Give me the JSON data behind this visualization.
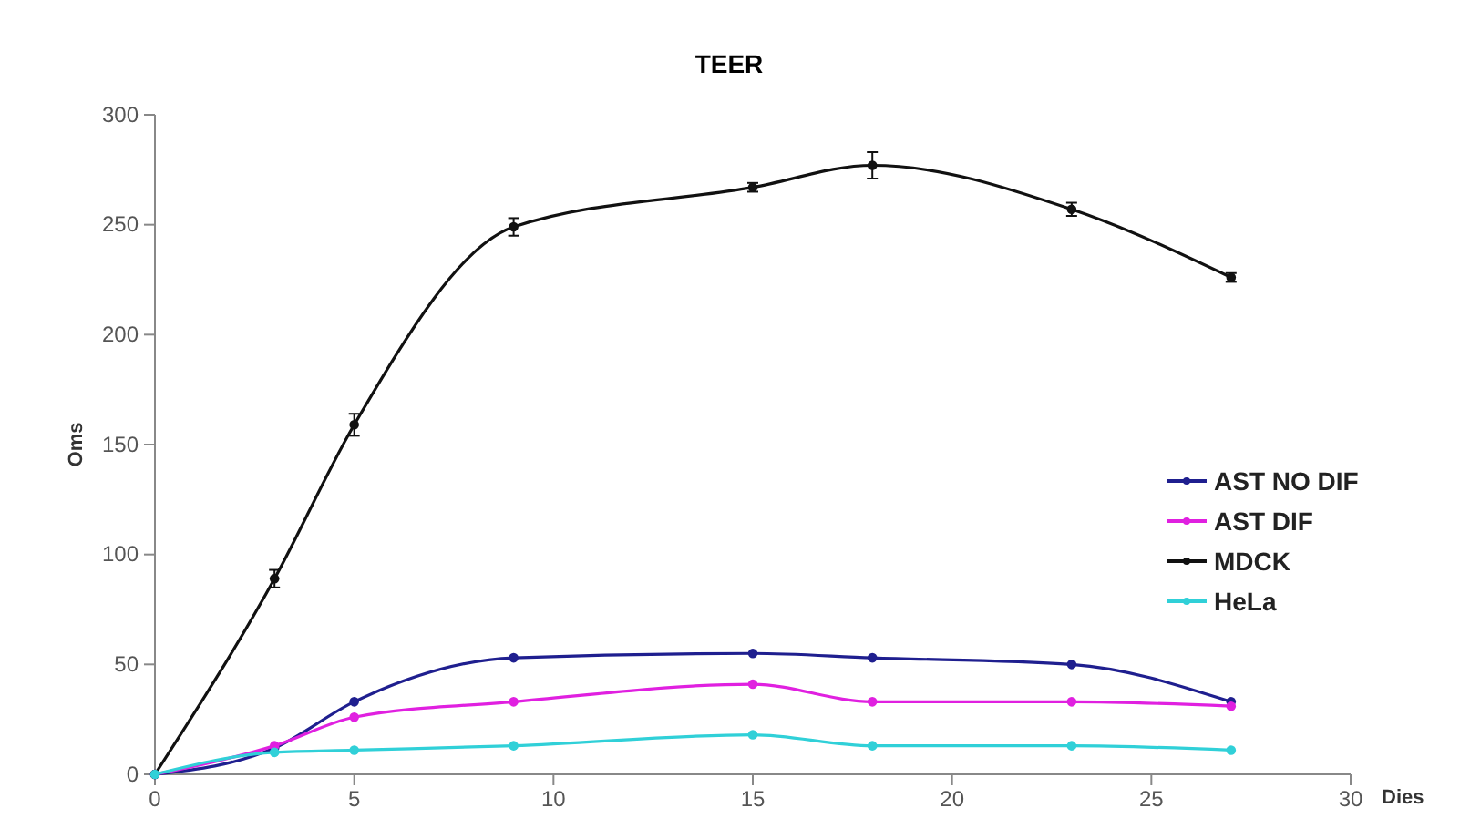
{
  "chart_data": {
    "type": "line",
    "title": "TEER",
    "xlabel": "Dies",
    "ylabel": "Oms",
    "x": [
      0,
      3,
      5,
      9,
      15,
      18,
      23,
      27
    ],
    "xlim": [
      0,
      30
    ],
    "xticks": [
      0,
      5,
      10,
      15,
      20,
      25,
      30
    ],
    "ylim": [
      0,
      300
    ],
    "yticks": [
      0,
      50,
      100,
      150,
      200,
      250,
      300
    ],
    "grid": false,
    "legend": "right",
    "marker": "circle",
    "line_style": "solid",
    "series": [
      {
        "name": "AST NO DIF",
        "color": "#1f1f8f",
        "values": [
          0,
          12,
          33,
          53,
          55,
          53,
          50,
          33
        ]
      },
      {
        "name": "AST DIF",
        "color": "#e020e0",
        "values": [
          0,
          13,
          26,
          33,
          41,
          33,
          33,
          31
        ]
      },
      {
        "name": "MDCK",
        "color": "#111111",
        "values": [
          0,
          89,
          159,
          249,
          267,
          277,
          257,
          226
        ],
        "errors": [
          null,
          4,
          5,
          4,
          2,
          6,
          3,
          2
        ]
      },
      {
        "name": "HeLa",
        "color": "#30d0d8",
        "values": [
          0,
          10,
          11,
          13,
          18,
          13,
          13,
          11
        ]
      }
    ]
  }
}
